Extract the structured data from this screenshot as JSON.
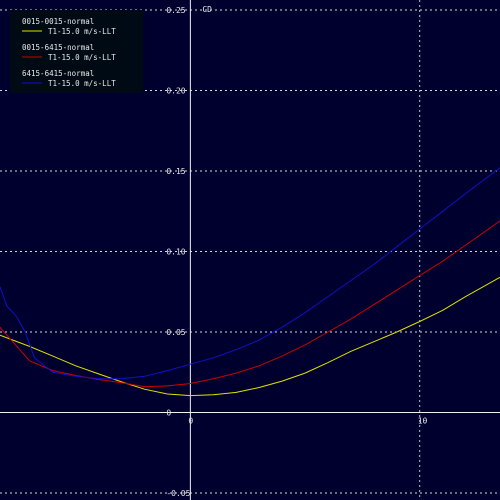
{
  "chart_data": {
    "type": "line",
    "xlabel": "",
    "ylabel": "CD",
    "xlim": [
      -8.3,
      13.5
    ],
    "ylim": [
      -0.05,
      0.25
    ],
    "x_ticks": [
      0,
      10
    ],
    "y_ticks": [
      -0.05,
      0,
      0.05,
      0.1,
      0.15,
      0.2,
      0.25
    ],
    "y_tick_labels": [
      "-0.05",
      "0",
      "0.05",
      "0.10",
      "0.15",
      "0.20",
      "0.25"
    ],
    "x_tick_labels": [
      "0",
      "10"
    ],
    "grid": true,
    "legend_position": "top-left",
    "series": [
      {
        "name": "0015-0015-normal",
        "subname": "T1-15.0 m/s-LLT",
        "color": "#e0e000",
        "x": [
          -8.3,
          -7,
          -6,
          -5,
          -4,
          -3,
          -2,
          -1,
          0,
          1,
          2,
          3,
          4,
          5,
          6,
          7,
          8,
          9,
          10,
          11,
          12,
          13.5
        ],
        "y": [
          0.048,
          0.041,
          0.035,
          0.029,
          0.024,
          0.019,
          0.0145,
          0.0115,
          0.0105,
          0.011,
          0.0125,
          0.0155,
          0.0195,
          0.0245,
          0.031,
          0.038,
          0.044,
          0.05,
          0.0565,
          0.0635,
          0.072,
          0.084
        ]
      },
      {
        "name": "0015-6415-normal",
        "subname": "T1-15.0 m/s-LLT",
        "color": "#cc0000",
        "x": [
          -8.3,
          -8,
          -7.5,
          -7,
          -6,
          -5,
          -4,
          -3,
          -2,
          -1,
          0,
          1,
          2,
          3,
          4,
          5,
          6,
          7,
          8,
          9,
          10,
          11,
          12,
          13.5
        ],
        "y": [
          0.053,
          0.048,
          0.04,
          0.032,
          0.026,
          0.023,
          0.0205,
          0.0185,
          0.016,
          0.0165,
          0.018,
          0.021,
          0.0245,
          0.029,
          0.035,
          0.042,
          0.05,
          0.058,
          0.067,
          0.076,
          0.085,
          0.094,
          0.104,
          0.119
        ]
      },
      {
        "name": "6415-6415-normal",
        "subname": "T1-15.0 m/s-LLT",
        "color": "#1010c8",
        "x": [
          -8.3,
          -8,
          -7.6,
          -7.2,
          -6.8,
          -6,
          -5,
          -4,
          -3,
          -2,
          -1,
          0,
          1,
          2,
          3,
          4,
          5,
          6,
          7,
          8,
          9,
          10,
          11,
          12,
          13.5
        ],
        "y": [
          0.078,
          0.066,
          0.06,
          0.05,
          0.034,
          0.025,
          0.0225,
          0.021,
          0.021,
          0.0225,
          0.026,
          0.03,
          0.034,
          0.039,
          0.045,
          0.053,
          0.062,
          0.072,
          0.082,
          0.092,
          0.103,
          0.114,
          0.125,
          0.136,
          0.152
        ]
      }
    ]
  }
}
